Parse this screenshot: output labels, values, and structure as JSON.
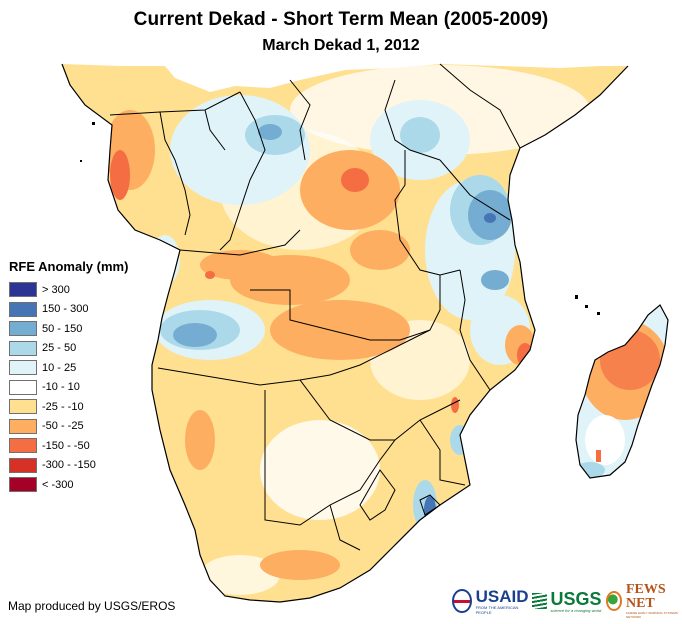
{
  "title": "Current Dekad - Short Term Mean (2005-2009)",
  "subtitle": "March Dekad 1, 2012",
  "legend": {
    "title": "RFE Anomaly (mm)",
    "items": [
      {
        "label": "> 300",
        "color": "#2c3494"
      },
      {
        "label": "150 - 300",
        "color": "#4575b4"
      },
      {
        "label": "50 - 150",
        "color": "#74add1"
      },
      {
        "label": "25 - 50",
        "color": "#abd9e9"
      },
      {
        "label": "10 - 25",
        "color": "#e0f3f8"
      },
      {
        "label": "-10 - 10",
        "color": "#ffffff"
      },
      {
        "label": "-25 - -10",
        "color": "#fee090"
      },
      {
        "label": "-50 - -25",
        "color": "#fdae61"
      },
      {
        "label": "-150 - -50",
        "color": "#f46d43"
      },
      {
        "label": "-300 - -150",
        "color": "#d73027"
      },
      {
        "label": "< -300",
        "color": "#a50026"
      }
    ]
  },
  "credit": "Map produced by USGS/EROS",
  "logos": {
    "usaid": {
      "name": "USAID",
      "tagline": "FROM THE AMERICAN PEOPLE"
    },
    "usgs": {
      "name": "USGS",
      "tagline": "science for a changing world"
    },
    "fews": {
      "name": "FEWS NET",
      "tagline": "FAMINE EARLY WARNING SYSTEMS NETWORK"
    }
  },
  "map": {
    "region": "Central, Eastern and Southern Africa + Madagascar",
    "anomaly_areas": [
      {
        "region": "Gabon / Equatorial Guinea coast",
        "class": "-150 - -50"
      },
      {
        "region": "Central DR Congo",
        "class": "-50 - -25"
      },
      {
        "region": "Eastern DR Congo core",
        "class": "-150 - -50"
      },
      {
        "region": "Northern Congo basin",
        "class": "25 - 50"
      },
      {
        "region": "Central Tanzania",
        "class": "50 - 150"
      },
      {
        "region": "Southern Tanzania",
        "class": "50 - 150"
      },
      {
        "region": "Central Angola",
        "class": "50 - 150"
      },
      {
        "region": "Zambia",
        "class": "-50 - -25"
      },
      {
        "region": "Southern South Africa",
        "class": "-50 - -25"
      },
      {
        "region": "KwaZulu-Natal coast",
        "class": "150 - 300"
      },
      {
        "region": "Northern Madagascar",
        "class": "-150 - -50"
      },
      {
        "region": "Southern Madagascar",
        "class": "25 - 50"
      },
      {
        "region": "Mozambique coast",
        "class": "-150 - -50"
      }
    ]
  }
}
